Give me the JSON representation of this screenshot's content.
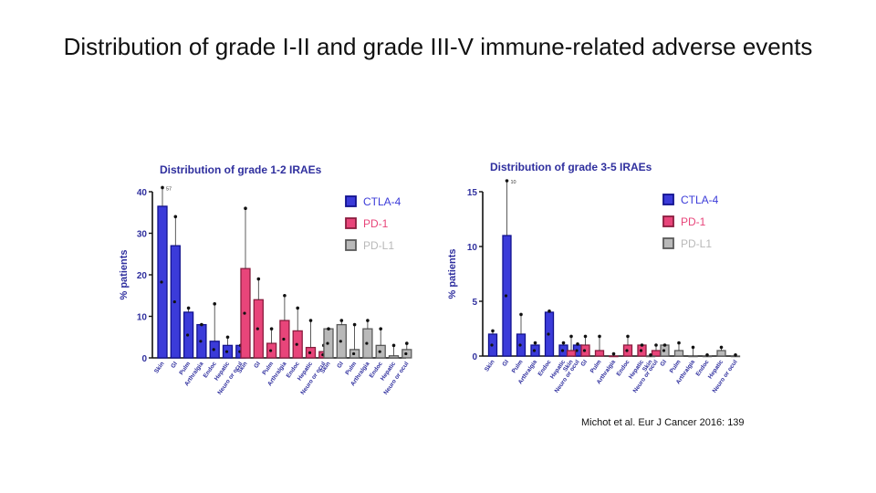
{
  "slide": {
    "title": "Distribution of grade I-II and grade III-V immune-related adverse events",
    "citation": "Michot et al. Eur J Cancer 2016: 139"
  },
  "colors": {
    "ctla4_fill": "#3b3bd9",
    "ctla4_stroke": "#12128f",
    "pd1_fill": "#e8457a",
    "pd1_stroke": "#8a1d3f",
    "pdl1_fill": "#b9b9b9",
    "pdl1_stroke": "#5a5a5a",
    "title_color": "#2f2f9e",
    "axis_color": "#111111"
  },
  "chart_data": [
    {
      "type": "bar",
      "title": "Distribution of grade 1-2 IRAEs",
      "ylabel": "% patients",
      "ylim": [
        0,
        40
      ],
      "yticks": [
        0,
        10,
        20,
        30,
        40
      ],
      "top_annotation": "57",
      "legend_position": "top-right",
      "groups": [
        {
          "name": "CTLA-4",
          "categories": [
            "Skin",
            "GI",
            "Pulm",
            "Arthralgia",
            "Endoc",
            "Hepatic",
            "Neuro or ocul"
          ],
          "values": [
            36.5,
            27,
            11,
            8,
            4,
            3,
            3
          ],
          "error_top": [
            41,
            34,
            12,
            8,
            13,
            5,
            3
          ]
        },
        {
          "name": "PD-1",
          "categories": [
            "Skin",
            "GI",
            "Pulm",
            "Arthralgia",
            "Endoc",
            "Hepatic",
            "Neuro or ocul"
          ],
          "values": [
            21.5,
            14,
            3.5,
            9,
            6.5,
            2.5,
            1.5
          ],
          "error_top": [
            36,
            19,
            7,
            15,
            12,
            9,
            3
          ]
        },
        {
          "name": "PD-L1",
          "categories": [
            "Skin",
            "GI",
            "Pulm",
            "Arthralgia",
            "Endoc",
            "Hepatic",
            "Neuro or ocul"
          ],
          "values": [
            7,
            8,
            2,
            7,
            3,
            0.5,
            2
          ],
          "error_top": [
            7,
            9,
            8,
            9,
            7,
            3,
            3.5
          ]
        }
      ]
    },
    {
      "type": "bar",
      "title": "Distribution of grade 3-5 IRAEs",
      "ylabel": "% patients",
      "ylim": [
        0,
        15
      ],
      "yticks": [
        0,
        5,
        10,
        15
      ],
      "top_annotation": "10",
      "legend_position": "top-right",
      "groups": [
        {
          "name": "CTLA-4",
          "categories": [
            "Skin",
            "GI",
            "Pulm",
            "Arthralgia",
            "Endoc",
            "Hepatic",
            "Neuro or ocul"
          ],
          "values": [
            2,
            11,
            2,
            1,
            4,
            1,
            1
          ],
          "error_top": [
            2.3,
            16,
            3.8,
            1.2,
            4.1,
            1.2,
            1.1
          ]
        },
        {
          "name": "PD-1",
          "categories": [
            "Skin",
            "GI",
            "Pulm",
            "Arthralgia",
            "Endoc",
            "Hepatic",
            "Neuro or ocul"
          ],
          "values": [
            0.5,
            1,
            0.5,
            0,
            1,
            1,
            0.5
          ],
          "error_top": [
            1.8,
            1.8,
            1.8,
            0.2,
            1.8,
            1,
            1
          ]
        },
        {
          "name": "PD-L1",
          "categories": [
            "Skin",
            "GI",
            "Pulm",
            "Arthralgia",
            "Endoc",
            "Hepatic",
            "Neuro or ocul"
          ],
          "values": [
            0,
            1,
            0.5,
            0,
            0,
            0.5,
            0
          ],
          "error_top": [
            0.1,
            1,
            1.2,
            0.8,
            0.1,
            0.8,
            0.1
          ]
        }
      ]
    }
  ]
}
